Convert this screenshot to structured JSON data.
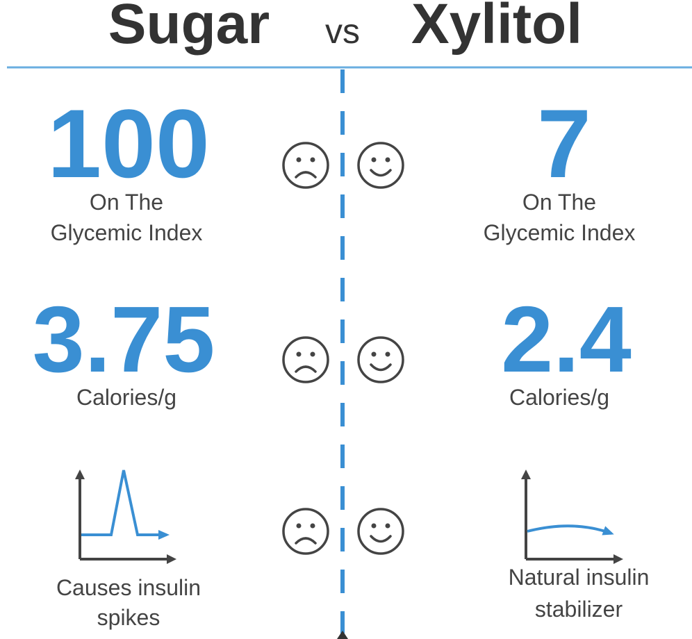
{
  "title": {
    "left": "Sugar",
    "vs": "vs",
    "right": "Xylitol"
  },
  "rows": [
    {
      "left": {
        "value": "100",
        "caption": [
          "On The",
          "Glycemic Index"
        ]
      },
      "right": {
        "value": "7",
        "caption": [
          "On The",
          "Glycemic Index"
        ]
      }
    },
    {
      "left": {
        "value": "3.75",
        "caption": [
          "Calories/g"
        ]
      },
      "right": {
        "value": "2.4",
        "caption": [
          "Calories/g"
        ]
      }
    },
    {
      "left": {
        "caption": [
          "Causes insulin",
          "spikes"
        ]
      },
      "right": {
        "caption": [
          "Natural insulin",
          "stabilizer"
        ]
      }
    }
  ]
}
